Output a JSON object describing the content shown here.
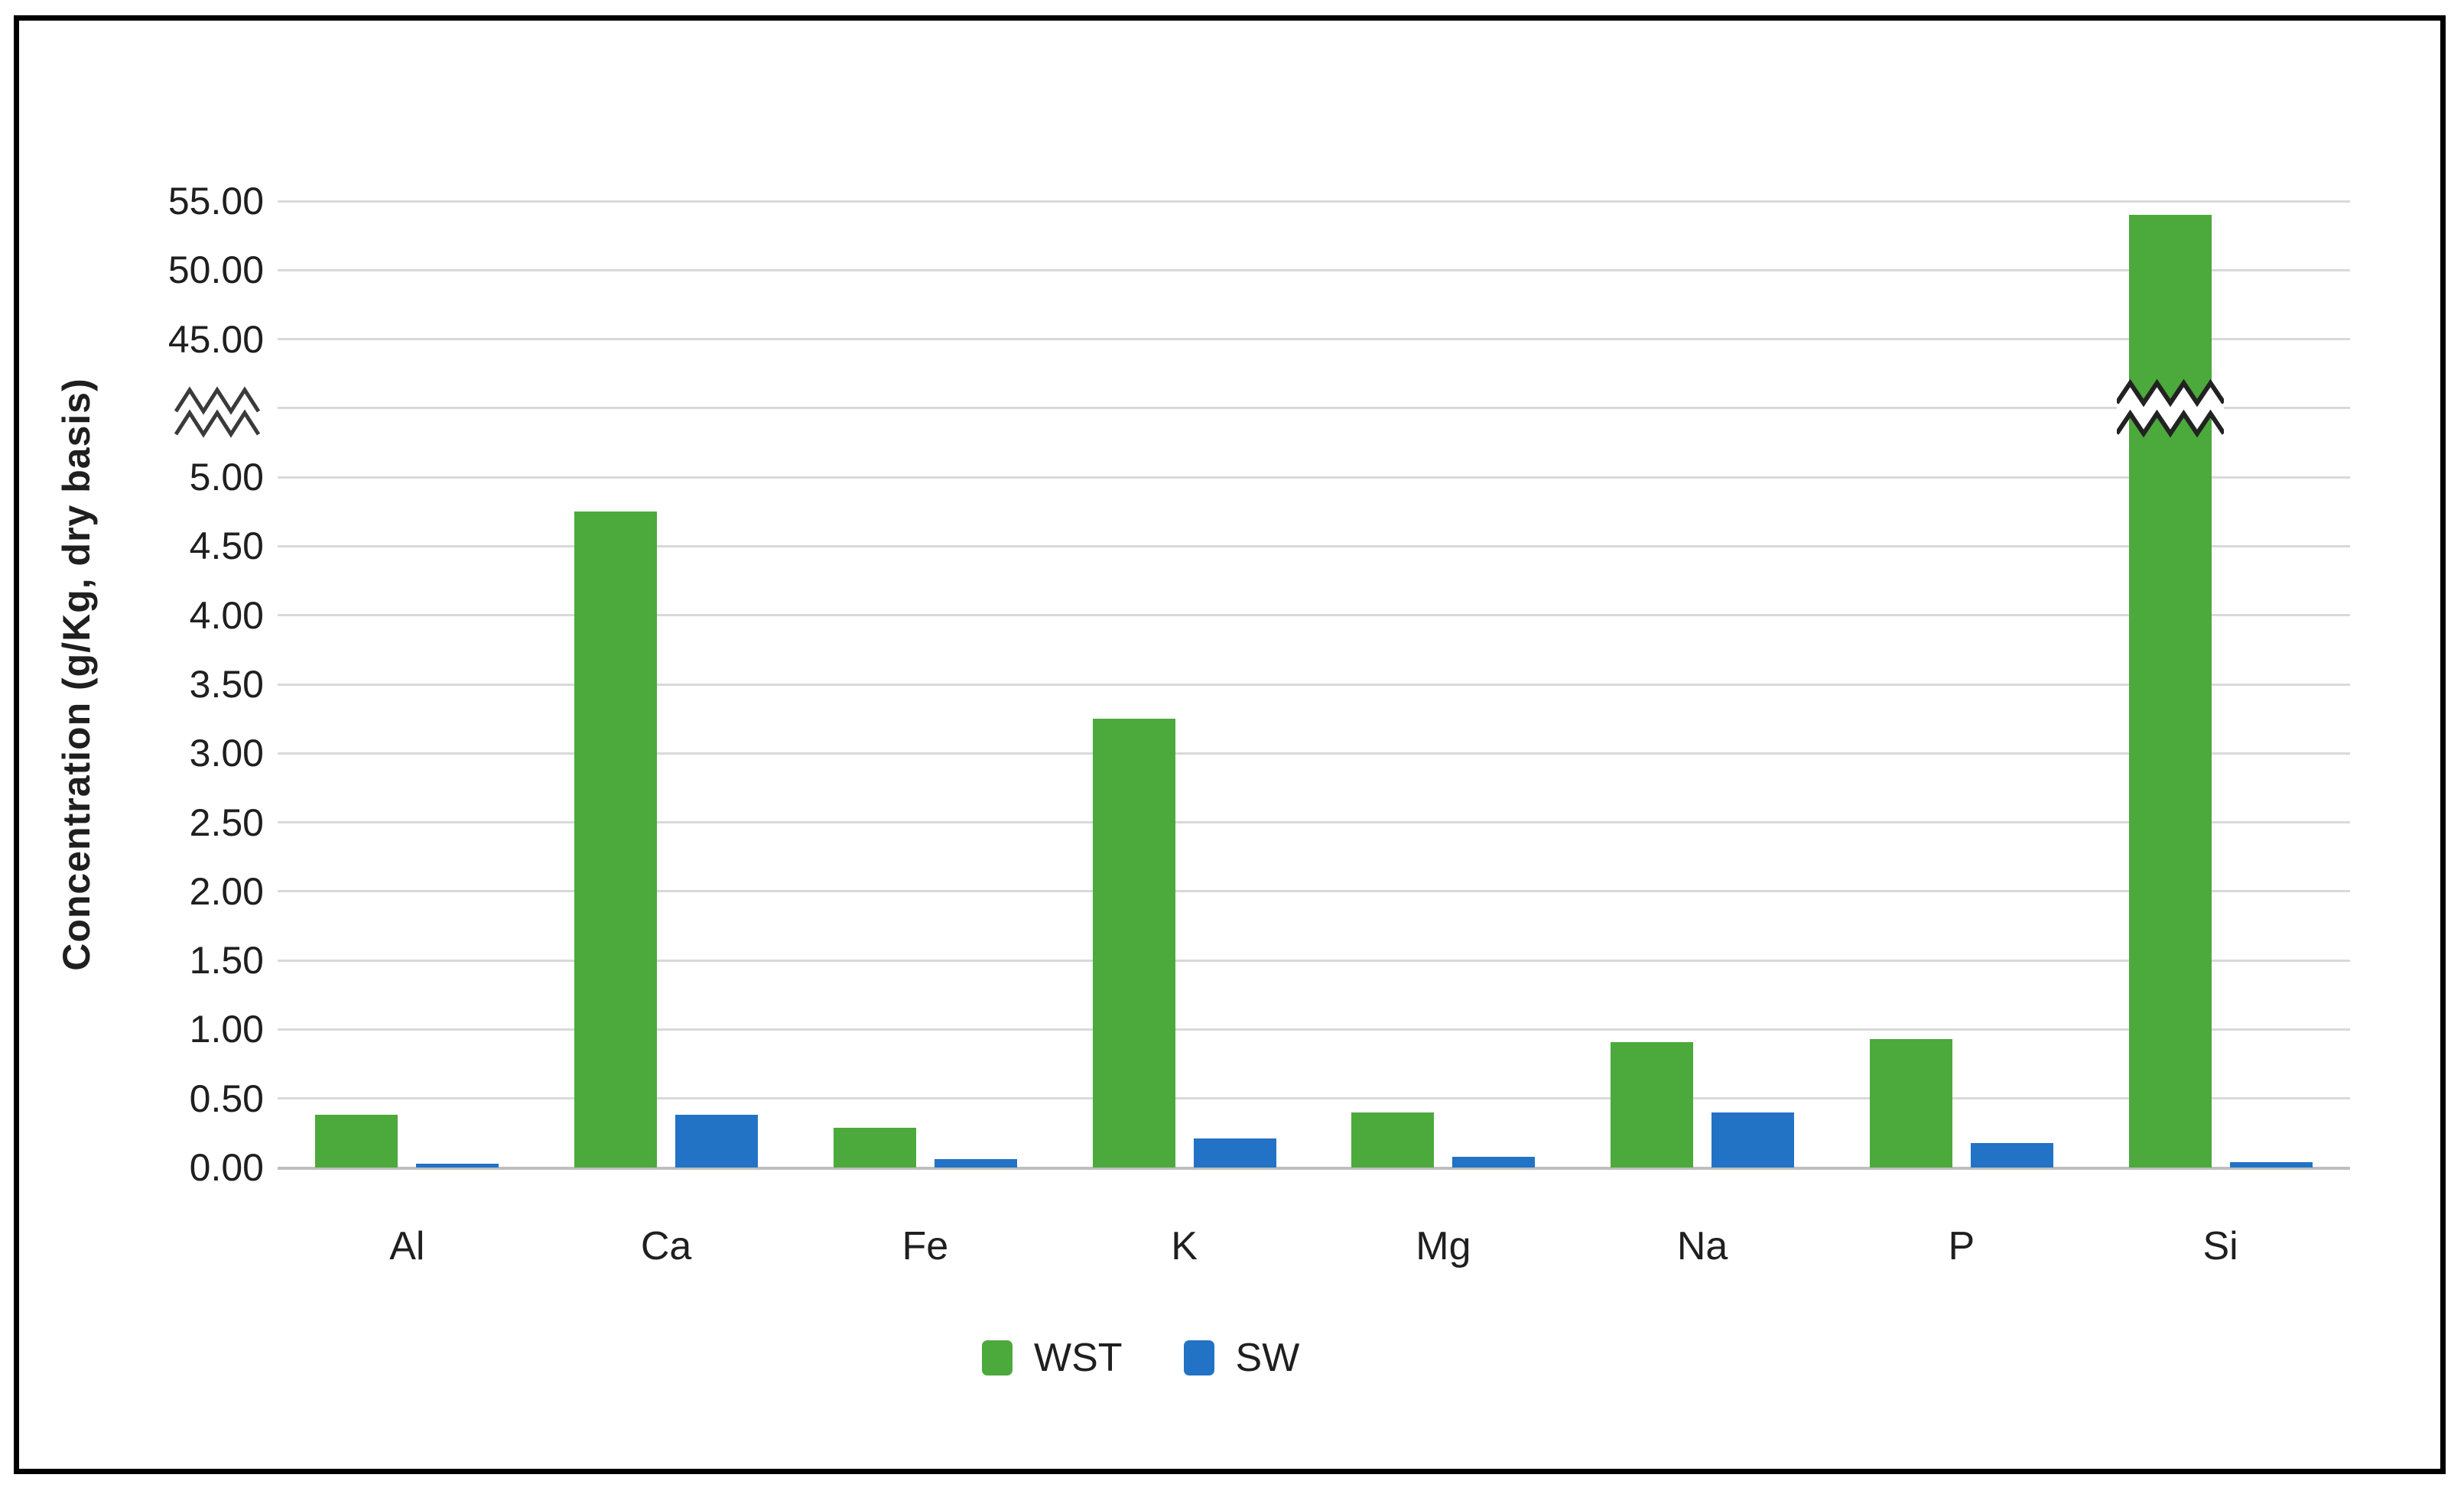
{
  "chart_data": {
    "type": "bar",
    "title": "",
    "xlabel": "",
    "ylabel": "Concentration (g/Kg, dry basis)",
    "categories": [
      "Al",
      "Ca",
      "Fe",
      "K",
      "Mg",
      "Na",
      "P",
      "Si"
    ],
    "series": [
      {
        "name": "WST",
        "color": "#4CA93C",
        "values": [
          0.38,
          4.75,
          0.29,
          3.25,
          0.4,
          0.91,
          0.93,
          54.0
        ]
      },
      {
        "name": "SW",
        "color": "#2272C6",
        "values": [
          0.03,
          0.38,
          0.06,
          0.21,
          0.08,
          0.4,
          0.18,
          0.04
        ]
      }
    ],
    "y_axis": {
      "tick_labels_top_to_bottom": [
        "55.00",
        "50.00",
        "45.00",
        "",
        "5.00",
        "4.50",
        "4.00",
        "3.50",
        "3.00",
        "2.50",
        "2.00",
        "1.50",
        "1.00",
        "0.50",
        "0.00"
      ],
      "break_row_index": 3,
      "lower_range": [
        0.0,
        5.0
      ],
      "lower_step": 0.5,
      "upper_range": [
        45.0,
        55.0
      ],
      "upper_step": 5.0,
      "has_axis_break": true
    },
    "broken_bar": {
      "category": "Si",
      "series": "WST"
    },
    "legend": {
      "position": "bottom",
      "entries": [
        "WST",
        "SW"
      ]
    },
    "grid": "horizontal",
    "colors": {
      "gridline": "#d9d9d9",
      "axis_line": "#bfbfbf",
      "text": "#1f1f1f",
      "frame": "#000000",
      "background": "#ffffff"
    }
  }
}
